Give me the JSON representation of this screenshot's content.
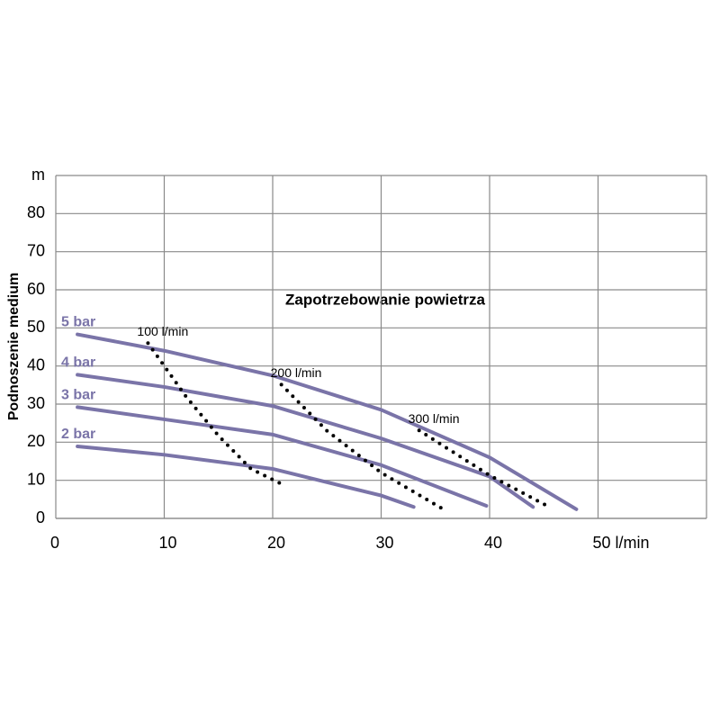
{
  "chart_data": {
    "type": "line",
    "title": "Zapotrzebowanie powietrza",
    "y_label": "Podnoszenie medium",
    "xlim": [
      0,
      60
    ],
    "ylim": [
      0,
      90
    ],
    "xticks": [
      0,
      10,
      20,
      30,
      40,
      {
        "value": 50,
        "label": "50 l/min"
      }
    ],
    "yticks": [
      0,
      10,
      20,
      30,
      40,
      50,
      60,
      70,
      80,
      {
        "value": 90,
        "label": "m"
      }
    ],
    "grid": true,
    "series": [
      {
        "name": "5 bar",
        "color": "#7a74a8",
        "style": "solid",
        "x": [
          2,
          10,
          20,
          30,
          40,
          48
        ],
        "values": [
          48.3,
          44,
          37.5,
          28.5,
          16,
          2.4
        ]
      },
      {
        "name": "4 bar",
        "color": "#7a74a8",
        "style": "solid",
        "x": [
          2,
          10,
          20,
          30,
          40,
          44
        ],
        "values": [
          37.7,
          34.5,
          29.5,
          21,
          11,
          3
        ]
      },
      {
        "name": "3 bar",
        "color": "#7a74a8",
        "style": "solid",
        "x": [
          2,
          10,
          20,
          30,
          39.7
        ],
        "values": [
          29.2,
          26,
          22,
          14,
          3.3
        ]
      },
      {
        "name": "2 bar",
        "color": "#7a74a8",
        "style": "solid",
        "x": [
          2,
          10,
          20,
          30,
          33
        ],
        "values": [
          18.9,
          16.7,
          13,
          6,
          3
        ]
      },
      {
        "name": "100 l/min",
        "color": "#000000",
        "style": "dotted",
        "x": [
          8.5,
          12,
          15,
          18,
          20.7
        ],
        "values": [
          46,
          32,
          21.7,
          13,
          9.2
        ]
      },
      {
        "name": "200 l/min",
        "color": "#000000",
        "style": "dotted",
        "x": [
          20.8,
          25,
          30,
          35.5
        ],
        "values": [
          35.1,
          23,
          12,
          2.8
        ]
      },
      {
        "name": "300 l/min",
        "color": "#000000",
        "style": "dotted",
        "x": [
          33.5,
          40,
          45.5
        ],
        "values": [
          23.1,
          11.3,
          3
        ]
      }
    ]
  }
}
